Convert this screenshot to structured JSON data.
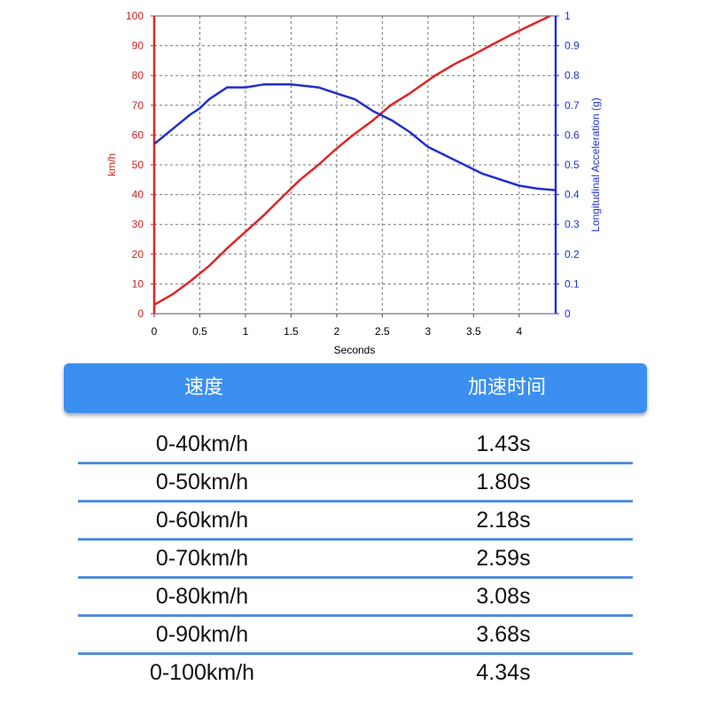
{
  "chart_data": {
    "type": "line",
    "xlabel": "Seconds",
    "ylabel": "km/h",
    "y2label": "Longitudinal Acceleration (g)",
    "xlim": [
      0,
      4.4
    ],
    "ylim": [
      0,
      100
    ],
    "y2lim": [
      0,
      1
    ],
    "x_ticks": [
      "0",
      "0.5",
      "1",
      "1.5",
      "2",
      "2.5",
      "3",
      "3.5",
      "4"
    ],
    "y_ticks": [
      "0",
      "10",
      "20",
      "30",
      "40",
      "50",
      "60",
      "70",
      "80",
      "90",
      "100"
    ],
    "y2_ticks": [
      "0",
      "0.1",
      "0.2",
      "0.3",
      "0.4",
      "0.5",
      "0.6",
      "0.7",
      "0.8",
      "0.9",
      "1"
    ],
    "grid": true,
    "series": [
      {
        "axis": "left",
        "color": "#e02424",
        "points": [
          [
            0,
            3
          ],
          [
            0.2,
            6.5
          ],
          [
            0.4,
            11
          ],
          [
            0.6,
            16
          ],
          [
            0.8,
            22
          ],
          [
            1.0,
            27.5
          ],
          [
            1.2,
            33
          ],
          [
            1.43,
            40
          ],
          [
            1.6,
            45
          ],
          [
            1.8,
            50
          ],
          [
            2.0,
            55.5
          ],
          [
            2.18,
            60
          ],
          [
            2.4,
            65
          ],
          [
            2.59,
            70
          ],
          [
            2.8,
            74
          ],
          [
            3.08,
            80
          ],
          [
            3.3,
            84
          ],
          [
            3.5,
            87
          ],
          [
            3.68,
            90
          ],
          [
            3.9,
            93.5
          ],
          [
            4.1,
            96.5
          ],
          [
            4.34,
            100
          ]
        ]
      },
      {
        "axis": "right",
        "color": "#1f2fd0",
        "points": [
          [
            0,
            0.57
          ],
          [
            0.2,
            0.62
          ],
          [
            0.4,
            0.67
          ],
          [
            0.5,
            0.69
          ],
          [
            0.6,
            0.72
          ],
          [
            0.8,
            0.76
          ],
          [
            1.0,
            0.76
          ],
          [
            1.2,
            0.77
          ],
          [
            1.5,
            0.77
          ],
          [
            1.8,
            0.76
          ],
          [
            2.0,
            0.74
          ],
          [
            2.2,
            0.72
          ],
          [
            2.4,
            0.68
          ],
          [
            2.6,
            0.65
          ],
          [
            2.8,
            0.61
          ],
          [
            3.0,
            0.56
          ],
          [
            3.2,
            0.53
          ],
          [
            3.4,
            0.5
          ],
          [
            3.6,
            0.47
          ],
          [
            3.8,
            0.45
          ],
          [
            4.0,
            0.43
          ],
          [
            4.2,
            0.42
          ],
          [
            4.4,
            0.415
          ]
        ]
      }
    ]
  },
  "table": {
    "headers": [
      "速度",
      "加速时间"
    ],
    "rows": [
      {
        "speed": "0-40km/h",
        "time": "1.43s"
      },
      {
        "speed": "0-50km/h",
        "time": "1.80s"
      },
      {
        "speed": "0-60km/h",
        "time": "2.18s"
      },
      {
        "speed": "0-70km/h",
        "time": "2.59s"
      },
      {
        "speed": "0-80km/h",
        "time": "3.08s"
      },
      {
        "speed": "0-90km/h",
        "time": "3.68s"
      },
      {
        "speed": "0-100km/h",
        "time": "4.34s"
      }
    ]
  }
}
